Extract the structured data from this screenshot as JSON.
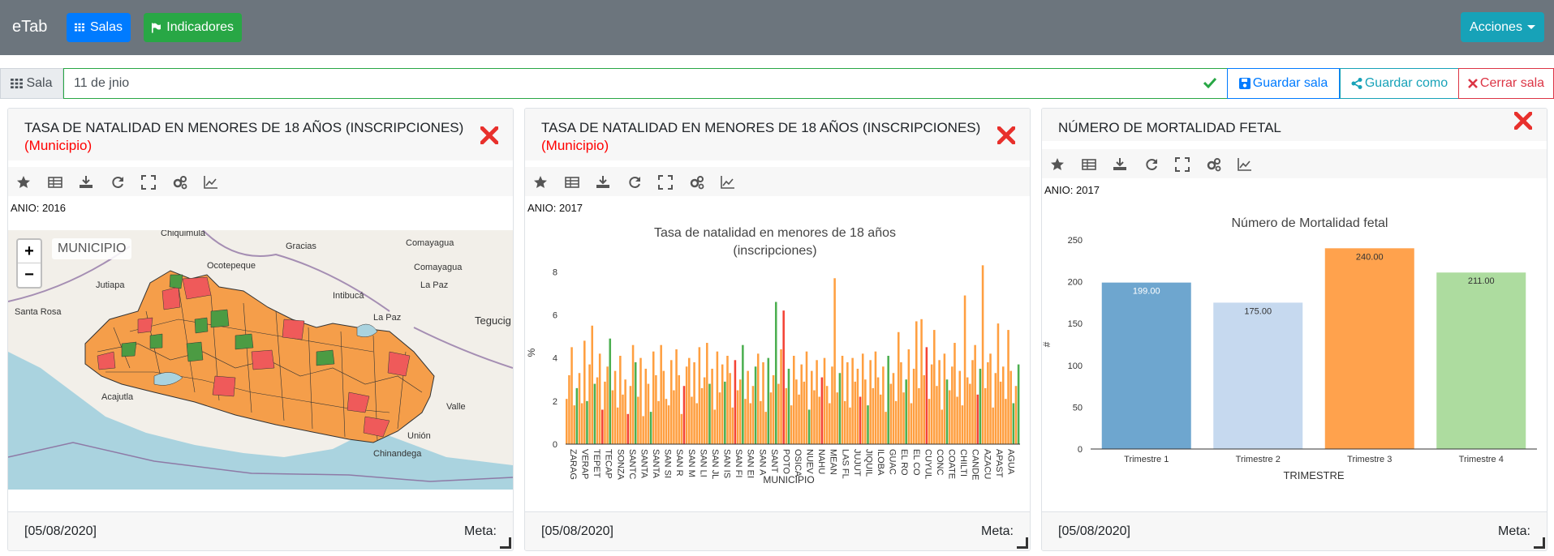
{
  "navbar": {
    "brand": "eTab",
    "salas_label": "Salas",
    "indicadores_label": "Indicadores",
    "acciones_label": "Acciones"
  },
  "salabar": {
    "label": "Sala",
    "input_value": "11 de jnio",
    "guardar_label": "Guardar sala",
    "guardar_como_label": "Guardar como",
    "cerrar_label": "Cerrar sala"
  },
  "colors": {
    "navbar": "#6c757d",
    "primary": "#007bff",
    "success": "#28a745",
    "info": "#17a2b8",
    "danger": "#dc3545",
    "map_orange": "#f59e4a",
    "map_red": "#ef5a5a",
    "map_green": "#4c9b43"
  },
  "toolbar_icons": [
    "star-icon",
    "table-icon",
    "download-icon",
    "refresh-icon",
    "fullscreen-icon",
    "cogs-icon",
    "line-chart-icon"
  ],
  "cards": [
    {
      "title": "TASA DE NATALIDAD EN MENORES DE 18 AÑOS (INSCRIPCIONES)",
      "subtitle": "(Municipio)",
      "filter": "ANIO: 2016",
      "footer_date": "[05/08/2020]",
      "footer_meta": "Meta:",
      "map": {
        "legend": "MUNICIPIO",
        "zoom_in": "+",
        "zoom_out": "−",
        "places": [
          "Gracias",
          "Chiquimula",
          "Ocotepeque",
          "Comayagua",
          "Comayagua",
          "La Paz",
          "Jutiapa",
          "Intibucá",
          "La Paz",
          "Santa Rosa",
          "Tegucig",
          "Acajutla",
          "Valle",
          "Unión",
          "Chinandega"
        ]
      }
    },
    {
      "title": "TASA DE NATALIDAD EN MENORES DE 18 AÑOS (INSCRIPCIONES)",
      "subtitle": "(Municipio)",
      "filter": "ANIO: 2017",
      "footer_date": "[05/08/2020]",
      "footer_meta": "Meta:"
    },
    {
      "title": "NÚMERO DE MORTALIDAD FETAL",
      "filter": "ANIO: 2017",
      "footer_date": "[05/08/2020]",
      "footer_meta": "Meta:"
    }
  ],
  "chart_data": [
    {
      "type": "bar",
      "title": "Tasa de natalidad en menores de 18 años (inscripciones)",
      "title_lines": [
        "Tasa de natalidad en menores de 18 años",
        "(inscripciones)"
      ],
      "xlabel": "MUNICIPIO",
      "ylabel": "%",
      "ylim": [
        0,
        8.5
      ],
      "yticks": [
        0,
        2,
        4,
        6,
        8
      ],
      "tick_labels": [
        "ZARAG",
        "VERAP",
        "TEPET",
        "TECAP",
        "SONZA",
        "SANTC",
        "SANTA",
        "SANTA",
        "SAN SI",
        "SAN R",
        "SAN M",
        "SAN LI",
        "SAN JL",
        "SAN IS",
        "SAN FI",
        "SAN EI",
        "SAN A",
        "SANT",
        "POTO",
        "OSICA",
        "NUEV",
        "NAHU",
        "MEAN",
        "LAS FL",
        "JUJUT",
        "JIQUIL",
        "ILOBA",
        "GUAC",
        "EL RO",
        "EL CO",
        "CUYUL",
        "CONC",
        "COATE",
        "CHILTI",
        "CANDE",
        "AZACU",
        "APAST",
        "AGUA"
      ],
      "series_colors": {
        "orange": "#ff9f40",
        "green": "#4caf50",
        "red": "#f44336"
      },
      "bars": [
        [
          2.1,
          "o"
        ],
        [
          3.2,
          "o"
        ],
        [
          4.5,
          "o"
        ],
        [
          1.8,
          "o"
        ],
        [
          2.6,
          "g"
        ],
        [
          3.3,
          "o"
        ],
        [
          1.9,
          "o"
        ],
        [
          4.8,
          "o"
        ],
        [
          2.0,
          "g"
        ],
        [
          3.7,
          "o"
        ],
        [
          5.5,
          "o"
        ],
        [
          2.8,
          "g"
        ],
        [
          3.1,
          "o"
        ],
        [
          4.2,
          "o"
        ],
        [
          1.6,
          "r"
        ],
        [
          2.9,
          "o"
        ],
        [
          3.6,
          "o"
        ],
        [
          4.9,
          "g"
        ],
        [
          2.5,
          "o"
        ],
        [
          3.4,
          "o"
        ],
        [
          1.7,
          "o"
        ],
        [
          4.1,
          "o"
        ],
        [
          2.3,
          "o"
        ],
        [
          3.0,
          "o"
        ],
        [
          1.4,
          "r"
        ],
        [
          2.7,
          "o"
        ],
        [
          4.6,
          "o"
        ],
        [
          3.8,
          "g"
        ],
        [
          2.2,
          "o"
        ],
        [
          4.0,
          "o"
        ],
        [
          1.3,
          "o"
        ],
        [
          3.5,
          "o"
        ],
        [
          2.8,
          "o"
        ],
        [
          1.5,
          "g"
        ],
        [
          4.3,
          "o"
        ],
        [
          3.2,
          "o"
        ],
        [
          2.0,
          "o"
        ],
        [
          4.6,
          "o"
        ],
        [
          3.4,
          "o"
        ],
        [
          2.1,
          "o"
        ],
        [
          1.8,
          "o"
        ],
        [
          3.9,
          "o"
        ],
        [
          2.5,
          "o"
        ],
        [
          4.4,
          "o"
        ],
        [
          3.2,
          "o"
        ],
        [
          1.4,
          "o"
        ],
        [
          2.7,
          "r"
        ],
        [
          3.6,
          "o"
        ],
        [
          4.0,
          "o"
        ],
        [
          2.2,
          "o"
        ],
        [
          3.8,
          "o"
        ],
        [
          1.9,
          "o"
        ],
        [
          4.5,
          "o"
        ],
        [
          2.6,
          "o"
        ],
        [
          3.1,
          "o"
        ],
        [
          4.7,
          "o"
        ],
        [
          2.8,
          "g"
        ],
        [
          3.5,
          "o"
        ],
        [
          1.6,
          "o"
        ],
        [
          4.3,
          "o"
        ],
        [
          2.4,
          "o"
        ],
        [
          3.7,
          "o"
        ],
        [
          2.9,
          "g"
        ],
        [
          4.1,
          "o"
        ],
        [
          3.3,
          "o"
        ],
        [
          1.7,
          "o"
        ],
        [
          3.9,
          "r"
        ],
        [
          2.5,
          "o"
        ],
        [
          3.0,
          "o"
        ],
        [
          4.6,
          "g"
        ],
        [
          2.1,
          "o"
        ],
        [
          3.4,
          "o"
        ],
        [
          1.9,
          "o"
        ],
        [
          2.7,
          "o"
        ],
        [
          3.6,
          "g"
        ],
        [
          4.2,
          "o"
        ],
        [
          2.0,
          "o"
        ],
        [
          3.8,
          "o"
        ],
        [
          1.5,
          "o"
        ],
        [
          4.0,
          "g"
        ],
        [
          2.4,
          "o"
        ],
        [
          3.2,
          "o"
        ],
        [
          6.6,
          "g"
        ],
        [
          2.8,
          "o"
        ],
        [
          4.4,
          "o"
        ],
        [
          6.2,
          "r"
        ],
        [
          2.6,
          "o"
        ],
        [
          3.5,
          "g"
        ],
        [
          1.8,
          "o"
        ],
        [
          4.1,
          "o"
        ],
        [
          3.0,
          "o"
        ],
        [
          2.3,
          "o"
        ],
        [
          3.7,
          "o"
        ],
        [
          2.9,
          "o"
        ],
        [
          4.3,
          "o"
        ],
        [
          1.6,
          "g"
        ],
        [
          3.4,
          "o"
        ],
        [
          2.5,
          "o"
        ],
        [
          3.9,
          "o"
        ],
        [
          2.2,
          "o"
        ],
        [
          3.1,
          "r"
        ],
        [
          4.0,
          "o"
        ],
        [
          2.7,
          "o"
        ],
        [
          1.9,
          "o"
        ],
        [
          3.6,
          "o"
        ],
        [
          7.7,
          "o"
        ],
        [
          2.4,
          "o"
        ],
        [
          3.3,
          "g"
        ],
        [
          4.1,
          "o"
        ],
        [
          2.0,
          "o"
        ],
        [
          3.8,
          "o"
        ],
        [
          1.7,
          "o"
        ],
        [
          4.0,
          "o"
        ],
        [
          2.9,
          "o"
        ],
        [
          3.5,
          "o"
        ],
        [
          2.2,
          "r"
        ],
        [
          4.2,
          "o"
        ],
        [
          3.0,
          "o"
        ],
        [
          1.8,
          "g"
        ],
        [
          3.9,
          "o"
        ],
        [
          2.6,
          "o"
        ],
        [
          4.3,
          "o"
        ],
        [
          3.1,
          "o"
        ],
        [
          2.3,
          "o"
        ],
        [
          3.6,
          "o"
        ],
        [
          1.5,
          "o"
        ],
        [
          4.1,
          "g"
        ],
        [
          2.8,
          "o"
        ],
        [
          3.3,
          "o"
        ],
        [
          2.0,
          "o"
        ],
        [
          5.2,
          "o"
        ],
        [
          3.8,
          "o"
        ],
        [
          2.4,
          "o"
        ],
        [
          3.0,
          "g"
        ],
        [
          4.4,
          "o"
        ],
        [
          1.9,
          "o"
        ],
        [
          3.5,
          "o"
        ],
        [
          5.7,
          "o"
        ],
        [
          2.6,
          "o"
        ],
        [
          5.8,
          "o"
        ],
        [
          3.2,
          "o"
        ],
        [
          4.5,
          "r"
        ],
        [
          2.1,
          "o"
        ],
        [
          3.7,
          "o"
        ],
        [
          5.3,
          "o"
        ],
        [
          2.7,
          "o"
        ],
        [
          3.9,
          "o"
        ],
        [
          1.6,
          "o"
        ],
        [
          4.2,
          "o"
        ],
        [
          3.0,
          "g"
        ],
        [
          2.5,
          "o"
        ],
        [
          3.6,
          "o"
        ],
        [
          4.7,
          "o"
        ],
        [
          2.2,
          "o"
        ],
        [
          3.4,
          "o"
        ],
        [
          1.8,
          "o"
        ],
        [
          6.9,
          "o"
        ],
        [
          3.1,
          "o"
        ],
        [
          2.8,
          "o"
        ],
        [
          3.9,
          "o"
        ],
        [
          4.6,
          "o"
        ],
        [
          2.3,
          "r"
        ],
        [
          3.5,
          "g"
        ],
        [
          8.3,
          "o"
        ],
        [
          2.6,
          "o"
        ],
        [
          3.8,
          "o"
        ],
        [
          4.2,
          "o"
        ],
        [
          1.7,
          "o"
        ],
        [
          3.3,
          "o"
        ],
        [
          5.6,
          "o"
        ],
        [
          2.9,
          "o"
        ],
        [
          3.6,
          "o"
        ],
        [
          2.1,
          "o"
        ],
        [
          5.3,
          "o"
        ],
        [
          3.4,
          "o"
        ],
        [
          1.9,
          "g"
        ],
        [
          2.7,
          "o"
        ],
        [
          3.7,
          "g"
        ]
      ]
    },
    {
      "type": "bar",
      "title": "Número de Mortalidad fetal",
      "xlabel": "TRIMESTRE",
      "ylabel": "#",
      "ylim": [
        0,
        250
      ],
      "yticks": [
        0,
        50,
        100,
        150,
        200,
        250
      ],
      "categories": [
        "Trimestre 1",
        "Trimestre 2",
        "Trimestre 3",
        "Trimestre 4"
      ],
      "values": [
        199,
        175,
        240,
        211
      ],
      "value_labels": [
        "199.00",
        "175.00",
        "240.00",
        "211.00"
      ],
      "colors": [
        "#6ea6cf",
        "#c6d9ef",
        "#ffa24d",
        "#addc9f"
      ]
    }
  ]
}
